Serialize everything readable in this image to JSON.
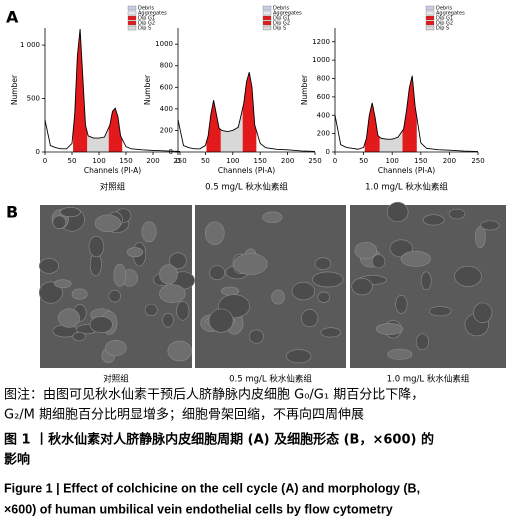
{
  "panel_a_label": "A",
  "panel_b_label": "B",
  "chart_data": [
    {
      "type": "line",
      "xlabel": "Channels (PI-A)",
      "ylabel": "Number",
      "caption": "对照组",
      "x": [
        0,
        10,
        20,
        30,
        40,
        50,
        55,
        60,
        65,
        70,
        75,
        80,
        90,
        100,
        110,
        120,
        125,
        130,
        135,
        140,
        150,
        160,
        180,
        200,
        225,
        250
      ],
      "values": [
        300,
        60,
        40,
        30,
        30,
        80,
        350,
        900,
        1150,
        700,
        250,
        150,
        130,
        130,
        140,
        250,
        380,
        410,
        330,
        150,
        50,
        30,
        20,
        15,
        10,
        5
      ],
      "color": "#000000",
      "fill_color": "#e31a1c",
      "xlim": [
        0,
        250
      ],
      "xticks": [
        0,
        50,
        100,
        150,
        200,
        250
      ],
      "ylim": [
        0,
        1160
      ],
      "yticks": [
        0,
        500,
        {
          "value": 1000,
          "label": "1 000"
        }
      ],
      "legend": [
        {
          "name": "Debris",
          "color": "#c8d0e8"
        },
        {
          "name": "Aggregates",
          "color": "#e8e8f0"
        },
        {
          "name": "Dip G1",
          "color": "#e31a1c"
        },
        {
          "name": "Dip G2",
          "color": "#e31a1c"
        },
        {
          "name": "Dip S",
          "color": "#d8d8d8"
        }
      ]
    },
    {
      "type": "line",
      "xlabel": "Channels (PI-A)",
      "ylabel": "Number",
      "caption": "0.5 mg/L 秋水仙素组",
      "x": [
        0,
        10,
        20,
        30,
        40,
        50,
        55,
        60,
        65,
        70,
        75,
        80,
        90,
        100,
        110,
        120,
        125,
        130,
        135,
        140,
        150,
        160,
        180,
        200,
        225,
        250
      ],
      "values": [
        300,
        60,
        40,
        30,
        30,
        60,
        150,
        350,
        480,
        350,
        220,
        200,
        190,
        200,
        230,
        450,
        650,
        740,
        600,
        250,
        80,
        40,
        25,
        20,
        10,
        5
      ],
      "color": "#000000",
      "fill_color": "#e31a1c",
      "xlim": [
        0,
        250
      ],
      "xticks": [
        0,
        50,
        100,
        150,
        200,
        250
      ],
      "ylim": [
        0,
        1150
      ],
      "yticks": [
        0,
        200,
        400,
        600,
        800,
        1000
      ],
      "legend": [
        {
          "name": "Debris",
          "color": "#c8d0e8"
        },
        {
          "name": "Aggregates",
          "color": "#e8e8f0"
        },
        {
          "name": "Dip G1",
          "color": "#e31a1c"
        },
        {
          "name": "Dip G2",
          "color": "#e31a1c"
        },
        {
          "name": "Dip S",
          "color": "#d8d8d8"
        }
      ]
    },
    {
      "type": "line",
      "xlabel": "Channels (PI-A)",
      "ylabel": "Number",
      "caption": "1.0 mg/L 秋水仙素组",
      "x": [
        0,
        10,
        20,
        30,
        40,
        50,
        55,
        60,
        65,
        70,
        75,
        80,
        90,
        100,
        110,
        120,
        125,
        130,
        135,
        140,
        150,
        160,
        180,
        200,
        225,
        250
      ],
      "values": [
        400,
        80,
        50,
        40,
        30,
        50,
        150,
        400,
        535,
        380,
        180,
        150,
        140,
        140,
        160,
        250,
        450,
        700,
        830,
        500,
        100,
        40,
        25,
        20,
        10,
        5
      ],
      "color": "#000000",
      "fill_color": "#e31a1c",
      "xlim": [
        0,
        250
      ],
      "xticks": [
        0,
        50,
        100,
        150,
        200,
        250
      ],
      "ylim": [
        0,
        1350
      ],
      "yticks": [
        0,
        200,
        400,
        600,
        800,
        1000,
        1200
      ],
      "legend": [
        {
          "name": "Debris",
          "color": "#c8d0e8"
        },
        {
          "name": "Aggregates",
          "color": "#e8e8f0"
        },
        {
          "name": "Dip G1",
          "color": "#e31a1c"
        },
        {
          "name": "Dip G2",
          "color": "#e31a1c"
        },
        {
          "name": "Dip S",
          "color": "#d8d8d8"
        }
      ]
    }
  ],
  "images": [
    {
      "label": "对照组"
    },
    {
      "label": "0.5 mg/L 秋水仙素组"
    },
    {
      "label": "1.0 mg/L 秋水仙素组"
    }
  ],
  "caption": {
    "note_lines": [
      "图注：由图可见秋水仙素干预后人脐静脉内皮细胞 G₀/G₁ 期百分比下降，",
      "G₂/M 期细胞百分比明显增多；细胞骨架回缩，不再向四周伸展"
    ],
    "title_cn_lines": [
      "图 1 丨秋水仙素对人脐静脉内皮细胞周期 (A) 及细胞形态 (B，×600) 的",
      "影响"
    ],
    "title_en_lines": [
      "Figure 1 | Effect of colchicine on the cell cycle (A) and morphology (B,",
      "×600) of human umbilical vein endothelial cells by flow cytometry"
    ]
  }
}
